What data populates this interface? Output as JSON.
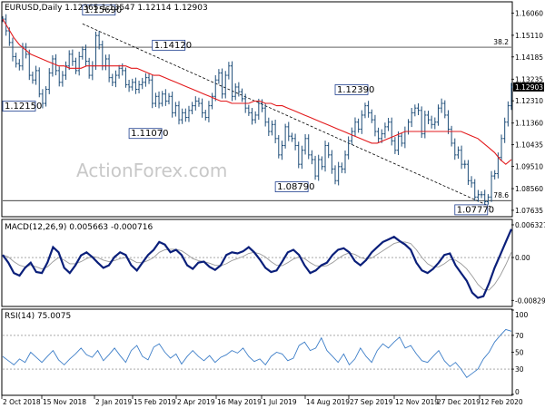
{
  "chart_data": [
    {
      "type": "line",
      "panel": "price",
      "header": "EURUSD,Daily  1.12365 1.13547 1.12114 1.12903",
      "x_labels": [
        "2 Oct 2018",
        "15 Nov 2018",
        "2 Jan 2019",
        "15 Feb 2019",
        "2 Apr 2019",
        "16 May 2019",
        "1 Jul 2019",
        "14 Aug 2019",
        "27 Sep 2019",
        "12 Nov 2019",
        "27 Dec 2019",
        "12 Feb 2020"
      ],
      "y_ticks": [
        "1.16060",
        "1.15110",
        "1.14185",
        "1.13235",
        "1.12310",
        "1.11360",
        "1.10435",
        "1.09510",
        "1.08560",
        "1.07635"
      ],
      "ylim": [
        1.074,
        1.165
      ],
      "current_price_label": "1.12903",
      "current_price": 1.12903,
      "level_labels": {
        "fib_382": "38.2",
        "fib_786": "78.6"
      },
      "levels": {
        "fib_382": 1.146,
        "fib_786": 1.0805
      },
      "annotations": [
        {
          "text": "1.15690",
          "kind": "high"
        },
        {
          "text": "1.12150",
          "kind": "low"
        },
        {
          "text": "1.14120",
          "kind": "high"
        },
        {
          "text": "1.11070",
          "kind": "low"
        },
        {
          "text": "1.12390",
          "kind": "high"
        },
        {
          "text": "1.08790",
          "kind": "low"
        },
        {
          "text": "1.07770",
          "kind": "low"
        }
      ],
      "series": [
        {
          "style": "bars",
          "color": "#1f4e79",
          "closes": [
            1.158,
            1.153,
            1.148,
            1.142,
            1.139,
            1.138,
            1.146,
            1.143,
            1.134,
            1.132,
            1.136,
            1.126,
            1.122,
            1.128,
            1.135,
            1.141,
            1.136,
            1.131,
            1.134,
            1.138,
            1.143,
            1.14,
            1.136,
            1.142,
            1.145,
            1.14,
            1.134,
            1.138,
            1.151,
            1.147,
            1.138,
            1.141,
            1.133,
            1.131,
            1.134,
            1.137,
            1.136,
            1.13,
            1.129,
            1.131,
            1.128,
            1.13,
            1.131,
            1.133,
            1.132,
            1.122,
            1.125,
            1.122,
            1.126,
            1.123,
            1.125,
            1.118,
            1.121,
            1.115,
            1.118,
            1.116,
            1.119,
            1.121,
            1.123,
            1.122,
            1.118,
            1.116,
            1.121,
            1.125,
            1.132,
            1.135,
            1.126,
            1.134,
            1.138,
            1.125,
            1.129,
            1.127,
            1.124,
            1.12,
            1.118,
            1.115,
            1.117,
            1.122,
            1.12,
            1.114,
            1.11,
            1.113,
            1.107,
            1.1,
            1.104,
            1.112,
            1.108,
            1.107,
            1.104,
            1.096,
            1.102,
            1.107,
            1.1,
            1.098,
            1.091,
            1.098,
            1.095,
            1.104,
            1.1,
            1.094,
            1.089,
            1.095,
            1.094,
            1.1,
            1.106,
            1.11,
            1.114,
            1.111,
            1.117,
            1.121,
            1.118,
            1.115,
            1.11,
            1.107,
            1.109,
            1.112,
            1.114,
            1.106,
            1.102,
            1.108,
            1.105,
            1.11,
            1.114,
            1.118,
            1.12,
            1.119,
            1.109,
            1.117,
            1.115,
            1.113,
            1.114,
            1.12,
            1.122,
            1.117,
            1.111,
            1.105,
            1.1,
            1.102,
            1.096,
            1.096,
            1.089,
            1.088,
            1.082,
            1.083,
            1.083,
            1.08,
            1.082,
            1.091,
            1.092,
            1.099,
            1.107,
            1.114,
            1.121,
            1.129
          ]
        },
        {
          "name": "",
          "style": "line",
          "color": "#e31a1c",
          "values": [
            1.158,
            1.154,
            1.15,
            1.147,
            1.145,
            1.143,
            1.142,
            1.141,
            1.14,
            1.139,
            1.138,
            1.138,
            1.137,
            1.137,
            1.137,
            1.138,
            1.138,
            1.138,
            1.138,
            1.138,
            1.138,
            1.138,
            1.138,
            1.137,
            1.137,
            1.136,
            1.135,
            1.134,
            1.134,
            1.133,
            1.132,
            1.131,
            1.13,
            1.129,
            1.128,
            1.127,
            1.126,
            1.125,
            1.124,
            1.123,
            1.123,
            1.122,
            1.122,
            1.122,
            1.122,
            1.123,
            1.123,
            1.122,
            1.122,
            1.121,
            1.121,
            1.12,
            1.119,
            1.118,
            1.117,
            1.116,
            1.115,
            1.114,
            1.113,
            1.112,
            1.111,
            1.11,
            1.109,
            1.108,
            1.107,
            1.106,
            1.105,
            1.105,
            1.106,
            1.107,
            1.108,
            1.109,
            1.11,
            1.11,
            1.11,
            1.11,
            1.11,
            1.11,
            1.11,
            1.11,
            1.11,
            1.11,
            1.11,
            1.109,
            1.108,
            1.107,
            1.105,
            1.103,
            1.101,
            1.098,
            1.096,
            1.098
          ]
        }
      ]
    },
    {
      "type": "line",
      "panel": "macd",
      "header": "MACD(12,26,9) 0.005663 -0.000716",
      "y_ticks": [
        "0.006327",
        "0.00",
        "-0.008299"
      ],
      "ylim": [
        -0.0093,
        0.0072
      ],
      "series": [
        {
          "name": "",
          "color": "#0a1f7a",
          "values": [
            0.0005,
            -0.001,
            -0.003,
            -0.0035,
            -0.002,
            -0.001,
            -0.0028,
            -0.003,
            -0.001,
            0.002,
            0.001,
            -0.002,
            -0.003,
            -0.0015,
            0.0004,
            0.001,
            0.0001,
            -0.001,
            -0.002,
            -0.0015,
            0.0001,
            0.001,
            0.0005,
            -0.0015,
            -0.0025,
            -0.001,
            0.0005,
            0.0015,
            0.003,
            0.0025,
            0.001,
            0.0015,
            0.0005,
            -0.0015,
            -0.0022,
            -0.001,
            -0.0008,
            -0.0018,
            -0.0024,
            -0.0015,
            0.0005,
            0.001,
            0.0008,
            0.0012,
            0.002,
            0.001,
            -0.0004,
            -0.002,
            -0.0028,
            -0.0025,
            -0.0008,
            0.001,
            0.0015,
            0.0005,
            -0.0015,
            -0.003,
            -0.0025,
            -0.0015,
            -0.001,
            0.0005,
            0.0015,
            0.0018,
            0.001,
            -0.0007,
            -0.0015,
            -0.0005,
            0.001,
            0.002,
            0.003,
            0.0035,
            0.004,
            0.0032,
            0.0025,
            0.0015,
            -0.001,
            -0.0025,
            -0.003,
            -0.0022,
            -0.001,
            0.0005,
            0.0008,
            -0.0015,
            -0.003,
            -0.0045,
            -0.0068,
            -0.0078,
            -0.0075,
            -0.005,
            -0.002,
            0.0005,
            0.003,
            0.0055
          ]
        },
        {
          "name": "",
          "color": "#9a9a9a",
          "values": [
            0.0005,
            0.0001,
            -0.0008,
            -0.0015,
            -0.0018,
            -0.0015,
            -0.0018,
            -0.0022,
            -0.0018,
            -0.0008,
            0.0,
            -0.0005,
            -0.0012,
            -0.0012,
            -0.0008,
            -0.0002,
            0.0002,
            0.0,
            -0.0005,
            -0.0008,
            -0.0006,
            -0.0002,
            0.0,
            -0.0004,
            -0.001,
            -0.001,
            -0.0006,
            0.0,
            0.001,
            0.0015,
            0.0016,
            0.0016,
            0.0013,
            0.0006,
            -0.0002,
            -0.0006,
            -0.0008,
            -0.0011,
            -0.0015,
            -0.0016,
            -0.0012,
            -0.0006,
            -0.0002,
            0.0002,
            0.0008,
            0.001,
            0.0007,
            0.0001,
            -0.0008,
            -0.0015,
            -0.0016,
            -0.001,
            -0.0003,
            0.0001,
            -0.0002,
            -0.001,
            -0.0016,
            -0.0017,
            -0.0016,
            -0.001,
            -0.0002,
            0.0005,
            0.0009,
            0.0006,
            0.0,
            -0.0003,
            -0.0001,
            0.0006,
            0.0013,
            0.002,
            0.0027,
            0.003,
            0.003,
            0.0027,
            0.0015,
            0.0,
            -0.0012,
            -0.0018,
            -0.0018,
            -0.0012,
            -0.0004,
            -0.0005,
            -0.0012,
            -0.0022,
            -0.0036,
            -0.0052,
            -0.0062,
            -0.0063,
            -0.0052,
            -0.0035,
            -0.0014,
            0.001
          ]
        }
      ]
    },
    {
      "type": "line",
      "panel": "rsi",
      "header": "RSI(14) 75.0075",
      "y_ticks": [
        "100",
        "70",
        "50",
        "30",
        "0"
      ],
      "ylim": [
        0,
        100
      ],
      "levels": [
        70,
        30
      ],
      "series": [
        {
          "name": "",
          "color": "#3d7ec8",
          "values": [
            45,
            40,
            35,
            42,
            38,
            50,
            44,
            38,
            45,
            52,
            41,
            35,
            42,
            48,
            55,
            47,
            44,
            52,
            40,
            47,
            55,
            46,
            38,
            52,
            58,
            45,
            41,
            56,
            60,
            50,
            43,
            48,
            36,
            45,
            52,
            45,
            40,
            46,
            38,
            44,
            47,
            52,
            49,
            55,
            45,
            39,
            42,
            35,
            45,
            50,
            48,
            40,
            43,
            58,
            62,
            52,
            55,
            67,
            52,
            45,
            38,
            48,
            35,
            42,
            55,
            45,
            38,
            52,
            60,
            55,
            62,
            68,
            55,
            58,
            48,
            40,
            38,
            45,
            52,
            40,
            33,
            38,
            30,
            20,
            25,
            30,
            42,
            50,
            62,
            70,
            77,
            75
          ]
        }
      ]
    }
  ],
  "watermark": "ActionForex.com"
}
